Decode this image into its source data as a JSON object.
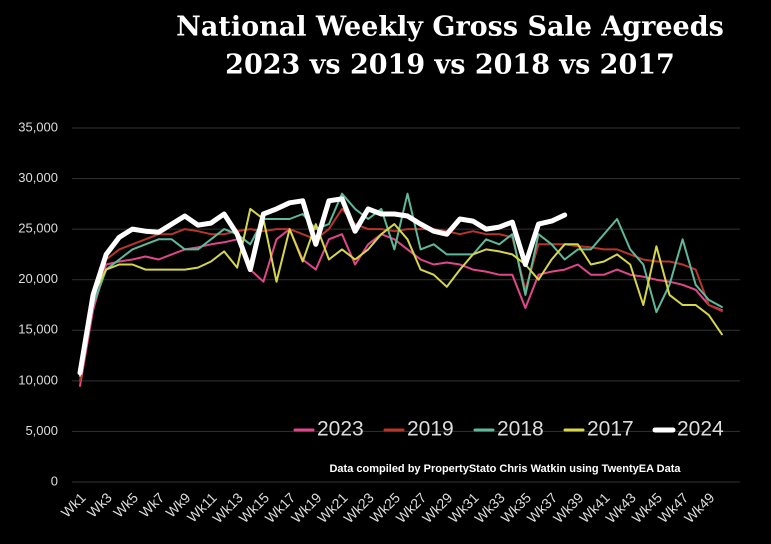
{
  "chart_data": {
    "type": "line",
    "title": "National Weekly Gross Sale Agreeds",
    "subtitle": "2023 vs 2019 vs 2018 vs 2017",
    "annotation": "Data compiled by PropertyStato Chris Watkin using TwentyEA Data",
    "categories": [
      "Wk1",
      null,
      "Wk3",
      null,
      "Wk5",
      null,
      "Wk7",
      null,
      "Wk9",
      null,
      "Wk11",
      null,
      "Wk13",
      null,
      "Wk15",
      null,
      "Wk17",
      null,
      "Wk19",
      null,
      "Wk21",
      null,
      "Wk23",
      null,
      "Wk25",
      null,
      "Wk27",
      null,
      "Wk29",
      null,
      "Wk31",
      null,
      "Wk33",
      null,
      "Wk35",
      null,
      "Wk37",
      null,
      "Wk39",
      null,
      "Wk41",
      null,
      "Wk43",
      null,
      "Wk45",
      null,
      "Wk47",
      null,
      "Wk49",
      null
    ],
    "ylim": [
      0,
      35000
    ],
    "yticks": [
      0,
      {
        "value": 5000,
        "label": "5,000"
      },
      {
        "value": 10000,
        "label": "10,000"
      },
      {
        "value": 15000,
        "label": "15,000"
      },
      {
        "value": 20000,
        "label": "20,000"
      },
      {
        "value": 25000,
        "label": "25,000"
      },
      {
        "value": 30000,
        "label": "30,000"
      },
      {
        "value": 35000,
        "label": "35,000"
      }
    ],
    "grid": true,
    "legend": "bottom-right",
    "series": [
      {
        "name": "2023",
        "color": "#e0478a",
        "values": [
          9500,
          17000,
          21500,
          21800,
          22000,
          22300,
          22000,
          22500,
          23000,
          23200,
          23500,
          23700,
          24000,
          21000,
          19800,
          24000,
          25000,
          22000,
          21000,
          24000,
          24500,
          21500,
          23500,
          24500,
          24000,
          23000,
          22000,
          21500,
          21700,
          21500,
          21000,
          20800,
          20500,
          20500,
          17200,
          20500,
          20800,
          21000,
          21500,
          20500,
          20500,
          21000,
          20500,
          20300,
          20000,
          19800,
          19500,
          19000,
          17500,
          17000
        ]
      },
      {
        "name": "2019",
        "color": "#b8352a",
        "values": [
          10000,
          18000,
          22000,
          23000,
          23500,
          24000,
          24500,
          24500,
          25000,
          24800,
          24500,
          24500,
          24800,
          25000,
          24800,
          25000,
          25000,
          24500,
          24000,
          25000,
          27000,
          25500,
          25000,
          25000,
          24800,
          25000,
          25000,
          25000,
          24800,
          24500,
          24800,
          24500,
          24500,
          24200,
          19000,
          23500,
          23500,
          23500,
          23300,
          23200,
          23000,
          23000,
          22500,
          22000,
          21800,
          21800,
          21500,
          21000,
          17500,
          16900
        ]
      },
      {
        "name": "2018",
        "color": "#5fb89a",
        "values": [
          10500,
          17500,
          21000,
          22000,
          23000,
          23500,
          24000,
          24000,
          23000,
          23000,
          24000,
          25000,
          24500,
          23500,
          26000,
          26000,
          26000,
          26500,
          25000,
          25500,
          28500,
          27000,
          26000,
          27000,
          23000,
          28500,
          23000,
          23500,
          22500,
          22500,
          22500,
          24000,
          23500,
          24500,
          18500,
          24500,
          23500,
          22000,
          23000,
          23000,
          24500,
          26000,
          23000,
          21500,
          16800,
          19500,
          24000,
          19500,
          18000,
          17300
        ]
      },
      {
        "name": "2017",
        "color": "#d6d64a",
        "values": [
          10500,
          18500,
          21000,
          21500,
          21500,
          21000,
          21000,
          21000,
          21000,
          21200,
          21800,
          22800,
          21200,
          27000,
          26000,
          19800,
          25000,
          21800,
          25500,
          22000,
          23000,
          22000,
          23000,
          24500,
          25500,
          24000,
          21000,
          20500,
          19300,
          21000,
          22500,
          23000,
          22800,
          22500,
          21500,
          20000,
          22000,
          23500,
          23500,
          21500,
          21800,
          22500,
          21500,
          17500,
          23300,
          18500,
          17500,
          17500,
          16500,
          14600
        ]
      },
      {
        "name": "2024",
        "color": "#ffffff",
        "values": [
          10800,
          18500,
          22500,
          24200,
          25000,
          24800,
          24700,
          25500,
          26300,
          25400,
          25600,
          26500,
          24500,
          21000,
          26500,
          27000,
          27600,
          27800,
          23500,
          27800,
          28000,
          24800,
          27000,
          26500,
          26500,
          26300,
          25500,
          24800,
          24500,
          26000,
          25800,
          25000,
          25200,
          25700,
          21500,
          25500,
          25800,
          26400,
          null,
          null,
          null,
          null,
          null,
          null,
          null,
          null,
          null,
          null,
          null,
          null
        ]
      }
    ]
  }
}
